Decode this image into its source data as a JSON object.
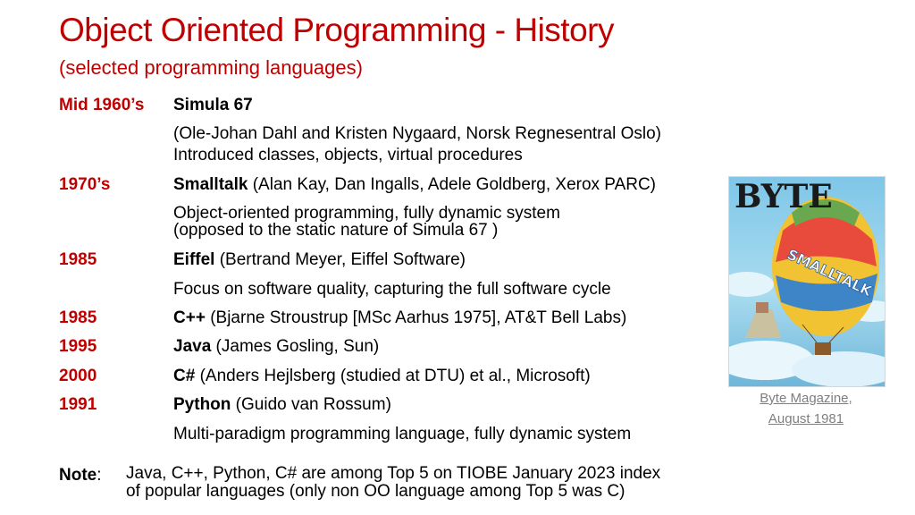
{
  "header": {
    "title": "Object Oriented Programming - History",
    "subtitle": "(selected programming languages)"
  },
  "timeline": [
    {
      "year": "Mid 1960’s",
      "lines": [
        {
          "name": "Simula 67",
          "rest": ""
        },
        {
          "name": "",
          "rest": "(Ole-Johan Dahl and Kristen Nygaard, Norsk Regnesentral Oslo)"
        },
        {
          "name": "",
          "rest": "Introduced classes, objects, virtual procedures"
        }
      ]
    },
    {
      "year": "1970’s",
      "lines": [
        {
          "name": "Smalltalk",
          "rest": " (Alan Kay, Dan Ingalls, Adele Goldberg, Xerox PARC)"
        },
        {
          "name": "",
          "rest": "Object-oriented programming, fully dynamic system"
        },
        {
          "name": "",
          "rest": "(opposed to the static nature of Simula 67 )"
        }
      ]
    },
    {
      "year": "1985",
      "lines": [
        {
          "name": "Eiffel",
          "rest": " (Bertrand Meyer, Eiffel Software)"
        },
        {
          "name": "",
          "rest": "Focus on software quality, capturing the full software cycle"
        }
      ]
    },
    {
      "year": "1985",
      "lines": [
        {
          "name": "C++",
          "rest": " (Bjarne Stroustrup [MSc Aarhus 1975], AT&T Bell Labs)"
        }
      ]
    },
    {
      "year": "1995",
      "lines": [
        {
          "name": "Java",
          "rest": " (James Gosling, Sun)"
        }
      ]
    },
    {
      "year": "2000",
      "lines": [
        {
          "name": "C#",
          "rest": " (Anders Hejlsberg (studied at DTU) et al., Microsoft)"
        }
      ]
    },
    {
      "year": "1991",
      "lines": [
        {
          "name": "Python",
          "rest": " (Guido van Rossum)"
        },
        {
          "name": "",
          "rest": "Multi-paradigm programming language, fully dynamic system"
        }
      ]
    }
  ],
  "note": {
    "label": "Note",
    "colon": ":",
    "line1": "Java, C++, Python, C# are among Top 5 on TIOBE January 2023 index",
    "line2": "of popular languages (only non OO language among Top 5 was C)"
  },
  "image": {
    "magazine_logo": "BYTE",
    "balloon_text": "SMALLTALK",
    "caption_line1": "Byte Magazine,",
    "caption_line2": "August 1981"
  },
  "colors": {
    "accent": "#c00000",
    "caption": "#7f7f7f"
  }
}
